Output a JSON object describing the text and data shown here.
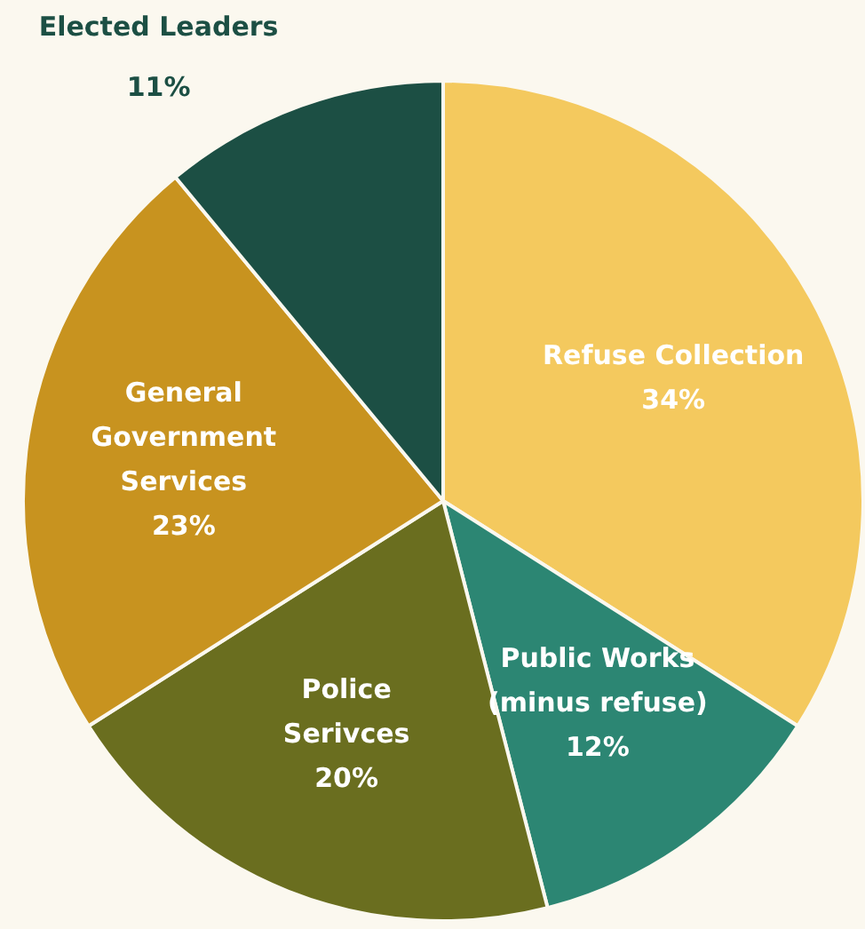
{
  "chart_data": {
    "type": "pie",
    "categories": [
      "Refuse Collection",
      "Public Works\n(minus refuse)",
      "Police\nSerivces",
      "General\nGovernment\nServices",
      "Elected Leaders"
    ],
    "values": [
      34,
      12,
      20,
      23,
      11
    ],
    "colors": [
      "#f4c95e",
      "#2c8673",
      "#6a6e1f",
      "#c8931f",
      "#1c4f44"
    ],
    "value_labels": [
      "34%",
      "12%",
      "20%",
      "23%",
      "11%"
    ]
  }
}
